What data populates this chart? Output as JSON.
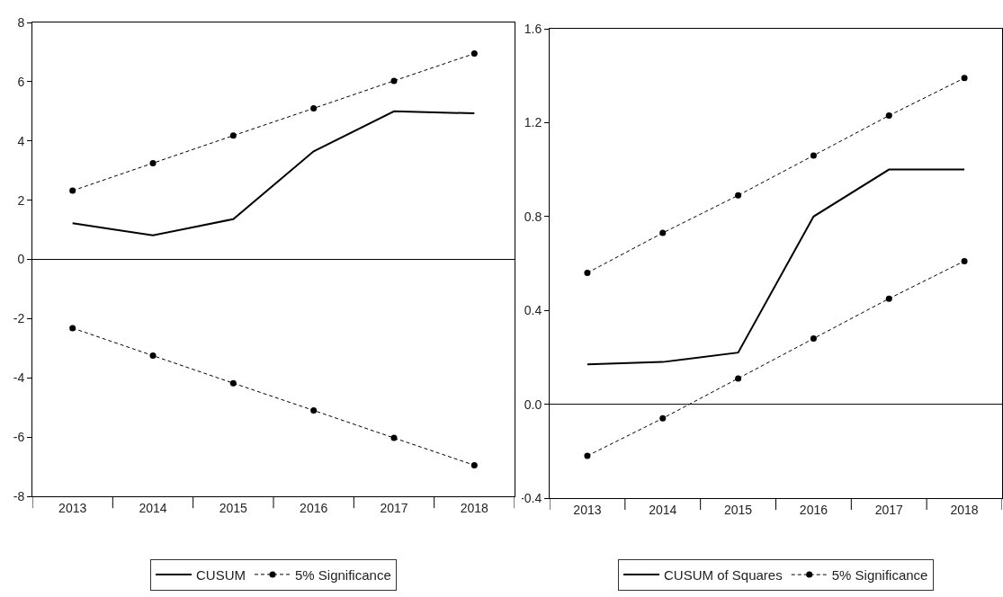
{
  "chart_data": [
    {
      "type": "line",
      "categories": [
        "2013",
        "2014",
        "2015",
        "2016",
        "2017",
        "2018"
      ],
      "ylim": [
        -8,
        8
      ],
      "yticks": [
        -8,
        -6,
        -4,
        -2,
        0,
        2,
        4,
        6,
        8
      ],
      "grid": false,
      "legend": "bottom",
      "ref_lines": [
        {
          "axis": "y",
          "value": 0,
          "color": "#000000",
          "line_style": "solid"
        }
      ],
      "series": [
        {
          "name": "CUSUM",
          "color": "#000000",
          "line_style": "solid",
          "marker": "none",
          "values": [
            1.22,
            0.81,
            1.36,
            3.65,
            5.0,
            4.93
          ]
        },
        {
          "name": "5% Significance",
          "color": "#000000",
          "line_style": "dashed",
          "marker": "circle",
          "values": [
            2.32,
            3.25,
            4.18,
            5.1,
            6.03,
            6.95
          ]
        },
        {
          "color": "#000000",
          "line_style": "dashed",
          "marker": "circle",
          "values": [
            -2.32,
            -3.25,
            -4.18,
            -5.1,
            -6.03,
            -6.95
          ]
        }
      ]
    },
    {
      "type": "line",
      "categories": [
        "2013",
        "2014",
        "2015",
        "2016",
        "2017",
        "2018"
      ],
      "ylim": [
        -0.4,
        1.6
      ],
      "yticks": [
        {
          "value": -0.4,
          "label": "-0.4"
        },
        {
          "value": 0,
          "label": "0.0"
        },
        0.4,
        0.8,
        1.2,
        1.6
      ],
      "grid": false,
      "legend": "bottom",
      "ref_lines": [
        {
          "axis": "y",
          "value": 0,
          "color": "#000000",
          "line_style": "solid"
        }
      ],
      "series": [
        {
          "name": "CUSUM of Squares",
          "color": "#000000",
          "line_style": "solid",
          "marker": "none",
          "values": [
            0.17,
            0.18,
            0.22,
            0.8,
            1.0,
            1.0
          ]
        },
        {
          "name": "5% Significance",
          "color": "#000000",
          "line_style": "dashed",
          "marker": "circle",
          "values": [
            0.56,
            0.73,
            0.89,
            1.06,
            1.23,
            1.39
          ]
        },
        {
          "color": "#000000",
          "line_style": "dashed",
          "marker": "circle",
          "values": [
            -0.22,
            -0.06,
            0.11,
            0.28,
            0.45,
            0.61
          ]
        }
      ]
    }
  ]
}
